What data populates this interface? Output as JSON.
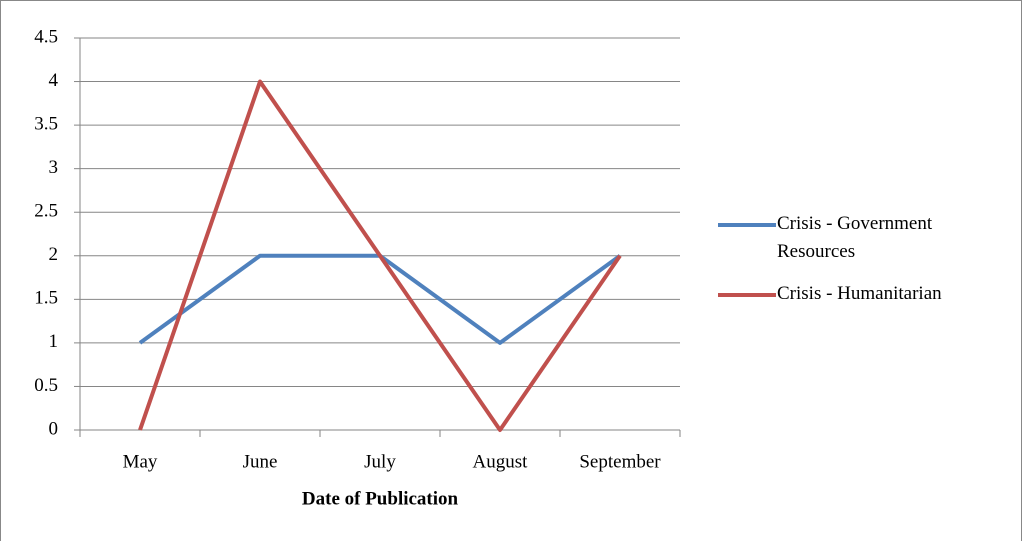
{
  "chart_data": {
    "type": "line",
    "x_label": "Date of Publication",
    "categories": [
      "May",
      "June",
      "July",
      "August",
      "September"
    ],
    "series": [
      {
        "name": "Crisis - Government Resources",
        "color": "#4f81bd",
        "values": [
          1,
          2,
          2,
          1,
          2
        ]
      },
      {
        "name": "Crisis - Humanitarian",
        "color": "#c0504d",
        "values": [
          0,
          4,
          2,
          0,
          2
        ]
      }
    ],
    "ylim": [
      0,
      4.5
    ],
    "yticks": [
      0,
      0.5,
      1,
      1.5,
      2,
      2.5,
      3,
      3.5,
      4,
      4.5
    ],
    "grid": true,
    "legend": "right"
  }
}
